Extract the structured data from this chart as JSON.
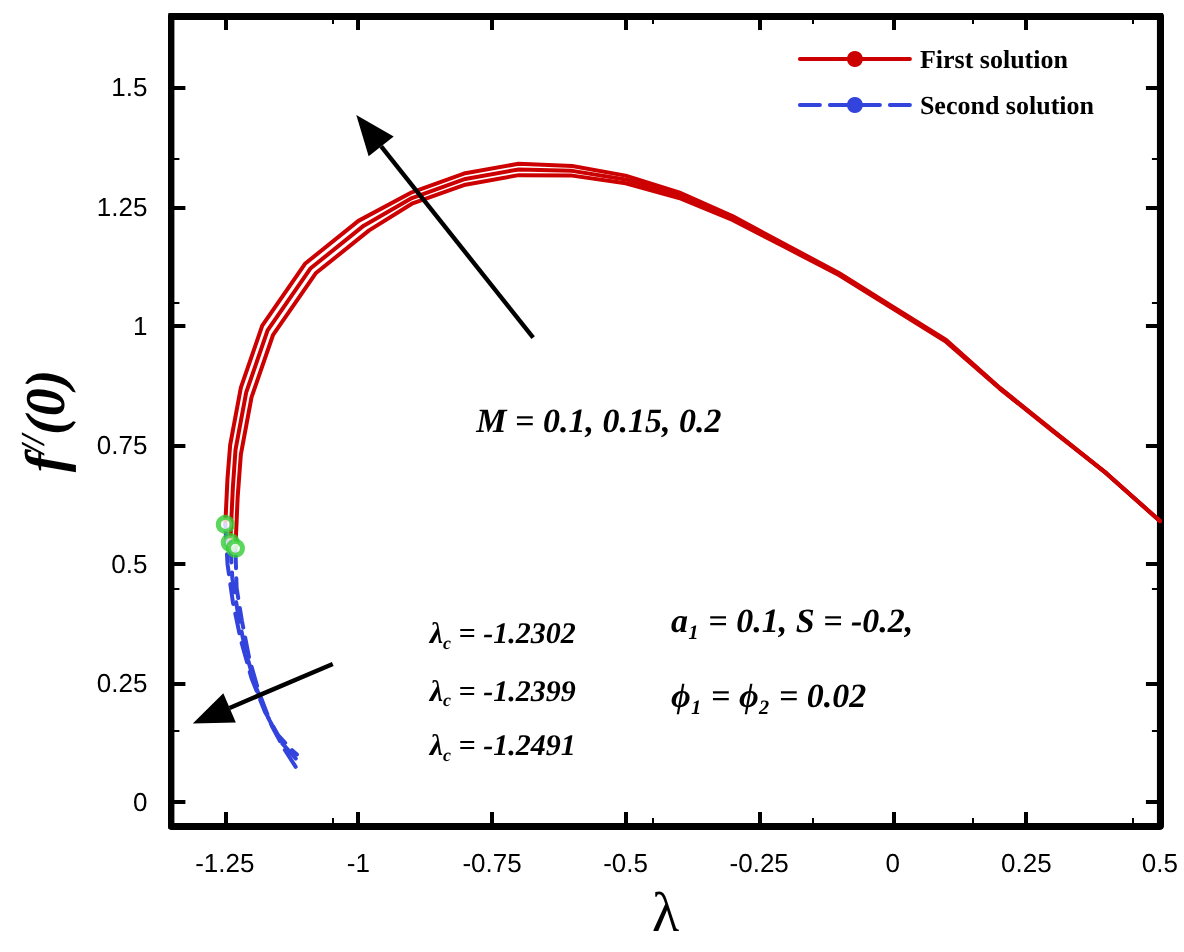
{
  "chart_data": {
    "type": "line",
    "xlabel": "λ",
    "ylabel": "f$^{//}$(0)",
    "xlim": [
      -1.35,
      0.5
    ],
    "xticks": [
      -1.25,
      -1,
      -0.75,
      -0.5,
      -0.25,
      0,
      0.25,
      0.5
    ],
    "ylim": [
      -0.05,
      1.65
    ],
    "yticks": [
      0,
      0.25,
      0.5,
      0.75,
      1,
      1.25,
      1.5
    ],
    "grid": false,
    "legend": "top right",
    "marker": "none",
    "annotations": [
      "M = 0.1, 0.15, 0.2",
      "λ$_{c}$ = -1.2302",
      "λ$_{c}$ = -1.2399",
      "λ$_{c}$ = -1.2491",
      "a₁ = 0.1, S = -0.2,",
      "ϕ₁ = ϕ₂ = 0.02"
    ],
    "series": [
      {
        "name": "First solution",
        "color": "#cc0000",
        "line_style": "solid",
        "x": [
          -1.2491,
          -1.245,
          -1.24,
          -1.22,
          -1.18,
          -1.1,
          -1.0,
          -0.9,
          -0.8,
          -0.7,
          -0.6,
          -0.5,
          -0.4,
          -0.3,
          -0.2,
          -0.1,
          0,
          0.1,
          0.2,
          0.3,
          0.4,
          0.5
        ],
        "values": [
          0.583,
          0.68,
          0.75,
          0.87,
          1.0,
          1.13,
          1.22,
          1.28,
          1.32,
          1.34,
          1.335,
          1.315,
          1.28,
          1.23,
          1.17,
          1.11,
          1.04,
          0.97,
          0.87,
          0.78,
          0.69,
          0.59
        ]
      },
      {
        "color": "#cc0000",
        "line_style": "solid",
        "x": [
          -1.2399,
          -1.235,
          -1.23,
          -1.21,
          -1.17,
          -1.09,
          -0.99,
          -0.9,
          -0.8,
          -0.7,
          -0.6,
          -0.5,
          -0.4,
          -0.3,
          -0.2,
          -0.1,
          0,
          0.1,
          0.2,
          0.3,
          0.4,
          0.5
        ],
        "values": [
          0.545,
          0.66,
          0.74,
          0.86,
          0.99,
          1.12,
          1.21,
          1.268,
          1.308,
          1.328,
          1.325,
          1.307,
          1.274,
          1.226,
          1.167,
          1.108,
          1.038,
          0.968,
          0.869,
          0.779,
          0.69,
          0.59
        ]
      },
      {
        "color": "#cc0000",
        "line_style": "solid",
        "x": [
          -1.2302,
          -1.226,
          -1.22,
          -1.2,
          -1.16,
          -1.08,
          -0.98,
          -0.9,
          -0.8,
          -0.7,
          -0.6,
          -0.5,
          -0.4,
          -0.3,
          -0.2,
          -0.1,
          0,
          0.1,
          0.2,
          0.3,
          0.4,
          0.5
        ],
        "values": [
          0.533,
          0.64,
          0.73,
          0.85,
          0.98,
          1.11,
          1.2,
          1.256,
          1.296,
          1.316,
          1.315,
          1.299,
          1.268,
          1.222,
          1.164,
          1.106,
          1.036,
          0.966,
          0.868,
          0.778,
          0.69,
          0.59
        ]
      },
      {
        "name": "Second solution",
        "color": "#3344dd",
        "line_style": "dashed",
        "x": [
          -1.2491,
          -1.245,
          -1.235,
          -1.22,
          -1.2,
          -1.175,
          -1.15,
          -1.125,
          -1.115
        ],
        "values": [
          0.583,
          0.5,
          0.42,
          0.34,
          0.26,
          0.19,
          0.14,
          0.11,
          0.1
        ]
      },
      {
        "color": "#3344dd",
        "line_style": "dashed",
        "x": [
          -1.2399,
          -1.236,
          -1.226,
          -1.212,
          -1.193,
          -1.168,
          -1.144,
          -1.12,
          -1.112
        ],
        "values": [
          0.545,
          0.47,
          0.4,
          0.32,
          0.245,
          0.175,
          0.125,
          0.095,
          0.085
        ]
      },
      {
        "color": "#3344dd",
        "line_style": "dashed",
        "x": [
          -1.2302,
          -1.228,
          -1.218,
          -1.204,
          -1.186,
          -1.162,
          -1.138,
          -1.115,
          -1.107
        ],
        "values": [
          0.533,
          0.45,
          0.38,
          0.3,
          0.23,
          0.16,
          0.11,
          0.07,
          0.058
        ]
      },
      {
        "type": "scatter",
        "color": "#33cc33",
        "marker": "circle",
        "x": [
          -1.2491,
          -1.2399,
          -1.2302
        ],
        "values": [
          0.583,
          0.545,
          0.533
        ]
      }
    ]
  }
}
